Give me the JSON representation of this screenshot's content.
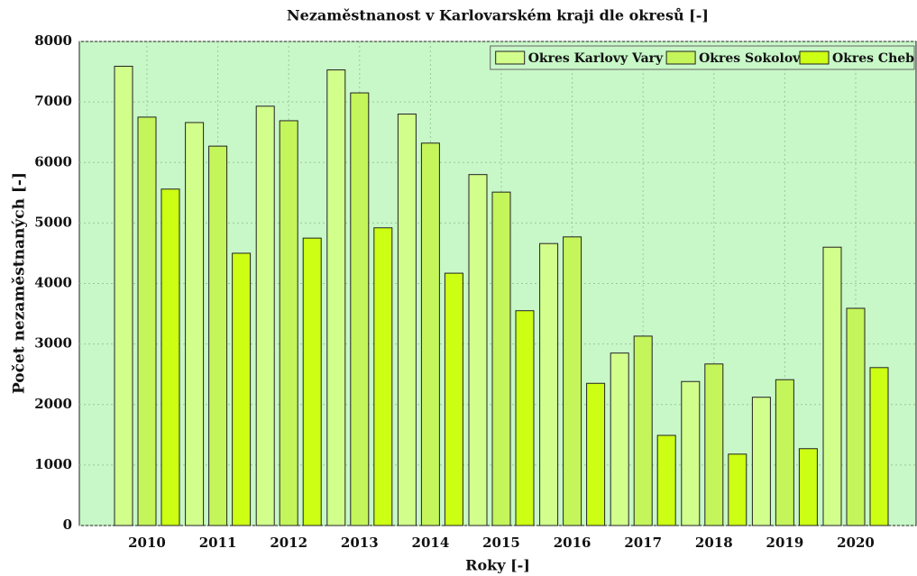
{
  "chart_data": {
    "type": "bar",
    "title": "Nezaměstnanost v Karlovarském kraji dle okresů [-]",
    "xlabel": "Roky [-]",
    "ylabel": "Počet nezaměstnaných [-]",
    "categories": [
      "2010",
      "2011",
      "2012",
      "2013",
      "2014",
      "2015",
      "2016",
      "2017",
      "2018",
      "2019",
      "2020"
    ],
    "series": [
      {
        "name": "Okres Karlovy Vary",
        "color": "#d2ff8c",
        "values": [
          7590,
          6660,
          6930,
          7530,
          6800,
          5800,
          4660,
          2850,
          2380,
          2120,
          4600
        ]
      },
      {
        "name": "Okres Sokolov",
        "color": "#c4f55a",
        "values": [
          6750,
          6270,
          6690,
          7150,
          6320,
          5510,
          4770,
          3130,
          2670,
          2410,
          3590
        ]
      },
      {
        "name": "Okres Cheb",
        "color": "#ccff14",
        "values": [
          5560,
          4500,
          4750,
          4920,
          4170,
          3550,
          2350,
          1490,
          1180,
          1270,
          2610
        ]
      }
    ],
    "ylim": [
      0,
      8000
    ],
    "yticks": [
      0,
      1000,
      2000,
      3000,
      4000,
      5000,
      6000,
      7000,
      8000
    ],
    "grid": true,
    "legend": "upper right"
  }
}
